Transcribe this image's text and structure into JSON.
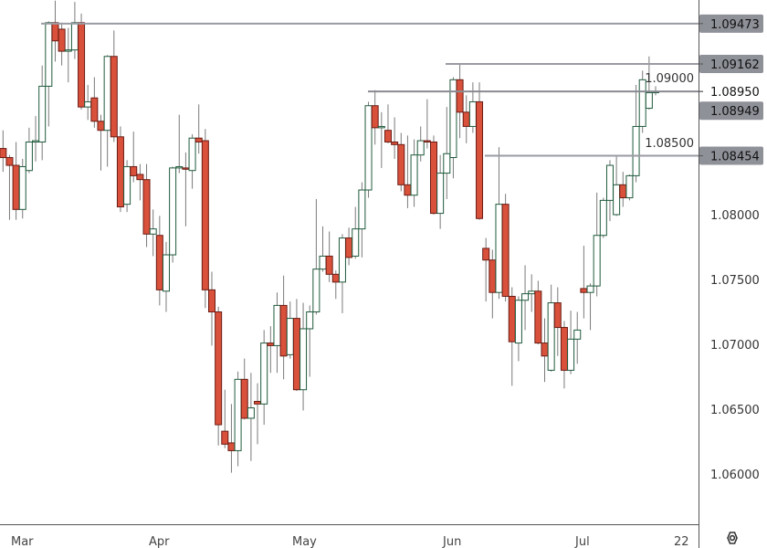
{
  "chart_data": {
    "type": "candlestick",
    "title": "",
    "xlabel": "",
    "ylabel": "",
    "ylim": [
      1.0597,
      1.0965
    ],
    "grid": false,
    "colors": {
      "up_border": "#1f5a3c",
      "up_fill": "#ffffff",
      "down_border": "#6a1c14",
      "down_fill": "#d9503b",
      "wick": "#7a7a7a",
      "level_line": "#9a9ba3",
      "level_label_bg": "#8f9199",
      "axis": "#555555"
    },
    "y_ticks": [
      "1.09000",
      "1.08500",
      "1.08000",
      "1.07500",
      "1.07000",
      "1.06500",
      "1.06000"
    ],
    "x_ticks": [
      "Mar",
      "Apr",
      "May",
      "Jun",
      "Jul",
      "22"
    ],
    "levels": [
      {
        "label": "1.09473",
        "value": 1.09473,
        "style": "boxed"
      },
      {
        "label": "1.09162",
        "value": 1.09162,
        "style": "boxed"
      },
      {
        "label": "1.08950",
        "value": 1.0895,
        "style": "plain"
      },
      {
        "label": "1.08454",
        "value": 1.08454,
        "style": "boxed"
      }
    ],
    "last_price": {
      "label": "1.08949",
      "value": 1.08949
    },
    "candles": [
      [
        1.0851,
        1.0865,
        1.0833,
        1.0844
      ],
      [
        1.0844,
        1.0846,
        1.0796,
        1.0838
      ],
      [
        1.0838,
        1.0856,
        1.0796,
        1.0804
      ],
      [
        1.0804,
        1.0843,
        1.0797,
        1.0837
      ],
      [
        1.0834,
        1.0867,
        1.0832,
        1.0856
      ],
      [
        1.0856,
        1.0876,
        1.0841,
        1.0857
      ],
      [
        1.0856,
        1.0915,
        1.0842,
        1.0899
      ],
      [
        1.0899,
        1.0949,
        1.0868,
        1.0948
      ],
      [
        1.0948,
        1.0965,
        1.0918,
        1.0934
      ],
      [
        1.0943,
        1.0948,
        1.0915,
        1.0926
      ],
      [
        1.0926,
        1.0944,
        1.0902,
        1.0927
      ],
      [
        1.0927,
        1.0964,
        1.092,
        1.0948
      ],
      [
        1.0948,
        1.0955,
        1.0881,
        1.0883
      ],
      [
        1.0883,
        1.09,
        1.0873,
        1.0887
      ],
      [
        1.089,
        1.0906,
        1.0867,
        1.0872
      ],
      [
        1.0872,
        1.0877,
        1.0834,
        1.0865
      ],
      [
        1.0865,
        1.0923,
        1.0837,
        1.0922
      ],
      [
        1.0922,
        1.0942,
        1.0856,
        1.086
      ],
      [
        1.086,
        1.0868,
        1.0802,
        1.0806
      ],
      [
        1.0808,
        1.0842,
        1.0802,
        1.0837
      ],
      [
        1.0837,
        1.0864,
        1.0825,
        1.083
      ],
      [
        1.0831,
        1.0839,
        1.0811,
        1.0827
      ],
      [
        1.0827,
        1.0839,
        1.0775,
        1.0785
      ],
      [
        1.0785,
        1.0804,
        1.0768,
        1.0789
      ],
      [
        1.0784,
        1.0799,
        1.073,
        1.0742
      ],
      [
        1.0741,
        1.0779,
        1.0725,
        1.0769
      ],
      [
        1.0769,
        1.0837,
        1.0763,
        1.0836
      ],
      [
        1.0836,
        1.0877,
        1.0832,
        1.0837
      ],
      [
        1.0836,
        1.0848,
        1.0791,
        1.0835
      ],
      [
        1.0834,
        1.0862,
        1.082,
        1.0859
      ],
      [
        1.0859,
        1.0885,
        1.0847,
        1.0856
      ],
      [
        1.0857,
        1.0866,
        1.0728,
        1.0742
      ],
      [
        1.0742,
        1.0756,
        1.0699,
        1.0725
      ],
      [
        1.0725,
        1.0729,
        1.0622,
        1.0638
      ],
      [
        1.0633,
        1.0665,
        1.062,
        1.0623
      ],
      [
        1.0624,
        1.0654,
        1.0601,
        1.0618
      ],
      [
        1.0618,
        1.0679,
        1.0606,
        1.0673
      ],
      [
        1.0673,
        1.0689,
        1.0642,
        1.0643
      ],
      [
        1.0643,
        1.0678,
        1.061,
        1.0651
      ],
      [
        1.0656,
        1.067,
        1.0623,
        1.0654
      ],
      [
        1.0654,
        1.0711,
        1.0638,
        1.0701
      ],
      [
        1.0701,
        1.0714,
        1.0678,
        1.0699
      ],
      [
        1.0699,
        1.074,
        1.0678,
        1.073
      ],
      [
        1.073,
        1.0753,
        1.0673,
        1.0691
      ],
      [
        1.0692,
        1.0733,
        1.0689,
        1.072
      ],
      [
        1.072,
        1.0735,
        1.0664,
        1.0665
      ],
      [
        1.0665,
        1.0732,
        1.0649,
        1.0712
      ],
      [
        1.0712,
        1.073,
        1.0675,
        1.0725
      ],
      [
        1.0725,
        1.0812,
        1.0723,
        1.0758
      ],
      [
        1.0758,
        1.0791,
        1.0756,
        1.0768
      ],
      [
        1.0768,
        1.0787,
        1.0748,
        1.0754
      ],
      [
        1.0754,
        1.0757,
        1.0735,
        1.0748
      ],
      [
        1.0748,
        1.0785,
        1.0724,
        1.0782
      ],
      [
        1.0782,
        1.079,
        1.0761,
        1.0767
      ],
      [
        1.0768,
        1.0806,
        1.0766,
        1.0789
      ],
      [
        1.0789,
        1.0825,
        1.0767,
        1.0819
      ],
      [
        1.0819,
        1.0887,
        1.0813,
        1.0884
      ],
      [
        1.0884,
        1.0896,
        1.0854,
        1.0867
      ],
      [
        1.0867,
        1.0879,
        1.0836,
        1.0868
      ],
      [
        1.0865,
        1.0885,
        1.0855,
        1.0856
      ],
      [
        1.0856,
        1.0875,
        1.0843,
        1.0854
      ],
      [
        1.0854,
        1.0863,
        1.0818,
        1.0823
      ],
      [
        1.0823,
        1.0861,
        1.0805,
        1.0815
      ],
      [
        1.0815,
        1.0858,
        1.0806,
        1.0846
      ],
      [
        1.0846,
        1.0868,
        1.0841,
        1.0857
      ],
      [
        1.0857,
        1.0889,
        1.0851,
        1.0856
      ],
      [
        1.0856,
        1.0861,
        1.08,
        1.0801
      ],
      [
        1.0801,
        1.0846,
        1.0789,
        1.0832
      ],
      [
        1.0832,
        1.0883,
        1.0812,
        1.0847
      ],
      [
        1.0844,
        1.0906,
        1.0828,
        1.0904
      ],
      [
        1.0904,
        1.0916,
        1.0859,
        1.0879
      ],
      [
        1.0879,
        1.0892,
        1.0855,
        1.0868
      ],
      [
        1.0868,
        1.0902,
        1.0863,
        1.0887
      ],
      [
        1.0887,
        1.0902,
        1.0796,
        1.0797
      ],
      [
        1.0774,
        1.0782,
        1.0733,
        1.0765
      ],
      [
        1.0765,
        1.0773,
        1.072,
        1.074
      ],
      [
        1.074,
        1.0852,
        1.0735,
        1.0808
      ],
      [
        1.0808,
        1.0816,
        1.0733,
        1.0737
      ],
      [
        1.0737,
        1.0744,
        1.0668,
        1.0702
      ],
      [
        1.0701,
        1.0737,
        1.0687,
        1.0734
      ],
      [
        1.0734,
        1.0761,
        1.0711,
        1.0739
      ],
      [
        1.0739,
        1.0754,
        1.0725,
        1.0741
      ],
      [
        1.0741,
        1.0749,
        1.07,
        1.0701
      ],
      [
        1.0701,
        1.072,
        1.0671,
        1.0691
      ],
      [
        1.068,
        1.0746,
        1.0679,
        1.0732
      ],
      [
        1.0732,
        1.0744,
        1.0691,
        1.0713
      ],
      [
        1.0713,
        1.0718,
        1.0666,
        1.068
      ],
      [
        1.068,
        1.0726,
        1.0677,
        1.0704
      ],
      [
        1.0704,
        1.0725,
        1.0685,
        1.0711
      ],
      [
        1.0743,
        1.0776,
        1.072,
        1.074
      ],
      [
        1.074,
        1.0747,
        1.0711,
        1.0745
      ],
      [
        1.0745,
        1.0817,
        1.0737,
        1.0784
      ],
      [
        1.0784,
        1.0813,
        1.0782,
        1.0811
      ],
      [
        1.0811,
        1.0842,
        1.0795,
        1.0838
      ],
      [
        1.08,
        1.0845,
        1.0799,
        1.0823
      ],
      [
        1.0823,
        1.0833,
        1.0806,
        1.0813
      ],
      [
        1.0813,
        1.0831,
        1.0811,
        1.083
      ],
      [
        1.083,
        1.09,
        1.0825,
        1.0868
      ],
      [
        1.0868,
        1.0911,
        1.0863,
        1.0904
      ],
      [
        1.0882,
        1.0922,
        1.0881,
        1.0894
      ],
      [
        1.0894,
        1.0899,
        1.0892,
        1.0895
      ]
    ]
  }
}
